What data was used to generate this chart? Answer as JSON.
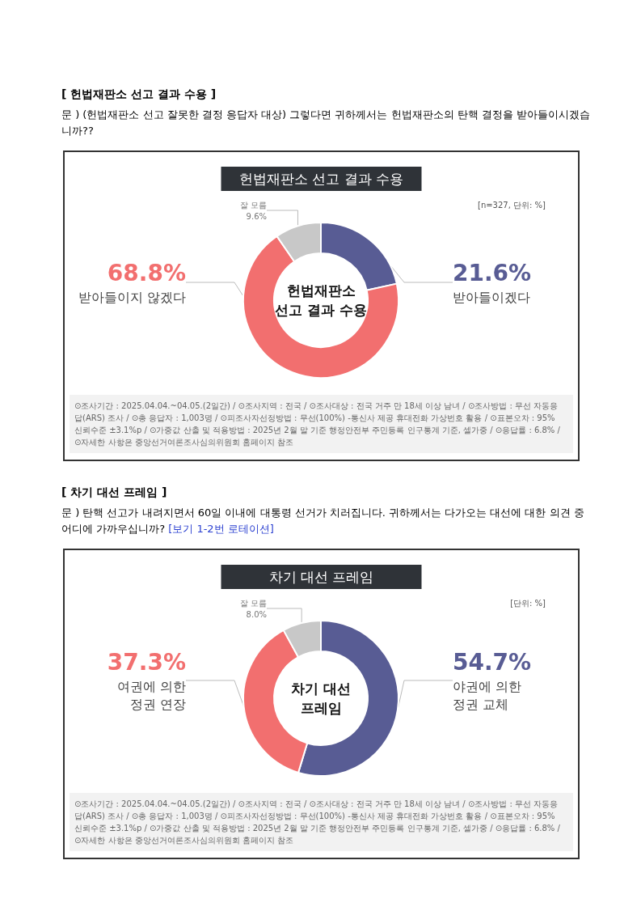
{
  "chart_data": [
    {
      "type": "donut",
      "title": "[ 헌법재판소 선고 결과 수용 ]",
      "subtitle": "문 )      (헌법재판소 선고 잘못한 결정 응답자 대상) 그렇다면 귀하께서는 헌법재판소의 탄핵 결정을 받아들이시겠습니까??",
      "categories": [
        "받아들이겠다",
        "받아들이지 않겠다",
        "잘 모름"
      ],
      "values": [
        21.6,
        68.8,
        9.6
      ],
      "value_labels": [
        "21.6%",
        "68.8%",
        "9.6%"
      ],
      "colors": [
        "#585c94",
        "#f26f6f",
        "#c8c8c8"
      ],
      "legend": false,
      "annotations": [
        "헌법재판소 선고 결과 수용",
        "[n=327, 단위: %]",
        "헌법재판소\n선고 결과 수용",
        "⊙조사기간 : 2025.04.04.~04.05.(2일간) / ⊙조사지역 : 전국 / ⊙조사대상 : 전국 거주 만 18세 이상 남녀 / ⊙조사방법 : 무선 자동응답(ARS) 조사 / ⊙총 응답자 : 1,003명 / ⊙피조사자선정방법 : 무선(100%) -통신사 제공 휴대전화 가상번호 활용 / ⊙표본오차 : 95% 신뢰수준 ±3.1%p / ⊙가중값 산출 및 적용방법 : 2025년 2월 말 기준 행정안전부 주민등록 인구통계 기준, 셀가중 / ⊙응답률 : 6.8% / ⊙자세한 사항은 중앙선거여론조사심의위원회 홈페이지 참조"
      ]
    },
    {
      "type": "donut",
      "title": "[ 차기 대선 프레임 ]",
      "subtitle": "문 )      탄핵 선고가 내려지면서 60일 이내에 대통령 선거가 치러집니다. 귀하께서는 다가오는 대선에 대한 의견 중 어디에 가까우십니까?",
      "categories": [
        "야권에 의한\n정권 교체",
        "여권에 의한\n정권 연장",
        "잘 모름"
      ],
      "values": [
        54.7,
        37.3,
        8.0
      ],
      "value_labels": [
        "54.7%",
        "37.3%",
        "8.0%"
      ],
      "colors": [
        "#585c94",
        "#f26f6f",
        "#c8c8c8"
      ],
      "legend": false,
      "annotations": [
        "차기 대선 프레임",
        "[단위: %]",
        "차기 대선\n프레임",
        "⊙조사기간 : 2025.04.04.~04.05.(2일간) / ⊙조사지역 : 전국 / ⊙조사대상 : 전국 거주 만 18세 이상 남녀 / ⊙조사방법 : 무선 자동응답(ARS) 조사 / ⊙총 응답자 : 1,003명 / ⊙피조사자선정방법 : 무선(100%) -통신사 제공 휴대전화 가상번호 활용 / ⊙표본오차 : 95% 신뢰수준 ±3.1%p / ⊙가중값 산출 및 적용방법 : 2025년 2월 말 기준 행정안전부 주민등록 인구통계 기준, 셀가중 / ⊙응답률 : 6.8% / ⊙자세한 사항은 중앙선거여론조사심의위원회 홈페이지 참조",
        "[보기 1-2번 로테이션]"
      ]
    }
  ]
}
